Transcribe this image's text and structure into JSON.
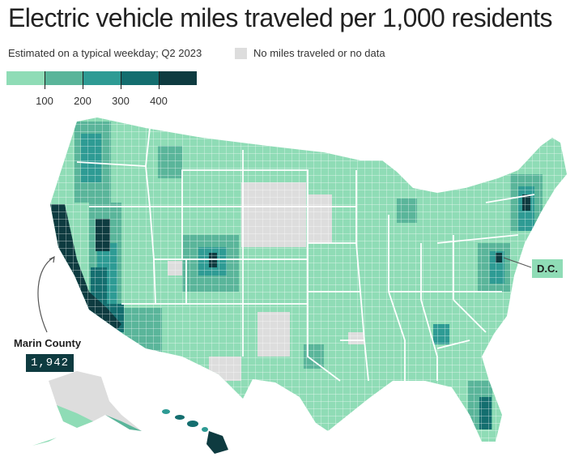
{
  "title": "Electric vehicle miles traveled per 1,000 residents",
  "subtitle": "Estimated on a typical weekday; Q2 2023",
  "no_data_label": "No miles traveled or no data",
  "legend": {
    "ticks": [
      "100",
      "200",
      "300",
      "400"
    ],
    "colors": [
      "#8fdcb6",
      "#5ab59a",
      "#2e9b94",
      "#146e6f",
      "#0e3b40"
    ],
    "no_data_color": "#dddddd"
  },
  "annotations": {
    "marin_county_label": "Marin County",
    "marin_county_value": "1,942",
    "dc_label": "D.C."
  },
  "map_data": {
    "type": "choropleth",
    "geography": "US counties",
    "scale": [
      {
        "range": "0–100",
        "color": "#8fdcb6"
      },
      {
        "range": "100–200",
        "color": "#5ab59a"
      },
      {
        "range": "200–300",
        "color": "#2e9b94"
      },
      {
        "range": "300–400",
        "color": "#146e6f"
      },
      {
        "range": "400+",
        "color": "#0e3b40"
      }
    ]
  }
}
